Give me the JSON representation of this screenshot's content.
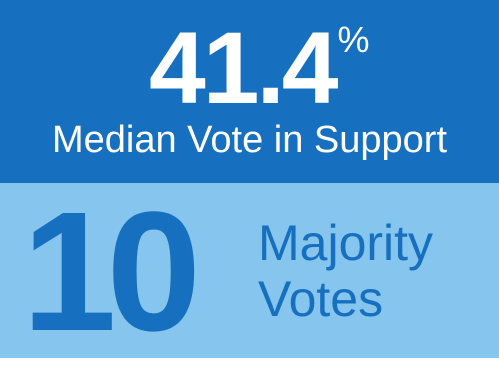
{
  "support_stat": {
    "value": "41.4",
    "unit": "%",
    "caption": "Median Vote in Support"
  },
  "majority_stat": {
    "value": "10",
    "label_line1": "Majority",
    "label_line2": "Votes"
  },
  "colors": {
    "dark_blue": "#1670bf",
    "light_blue": "#85c5ee",
    "white": "#ffffff"
  }
}
